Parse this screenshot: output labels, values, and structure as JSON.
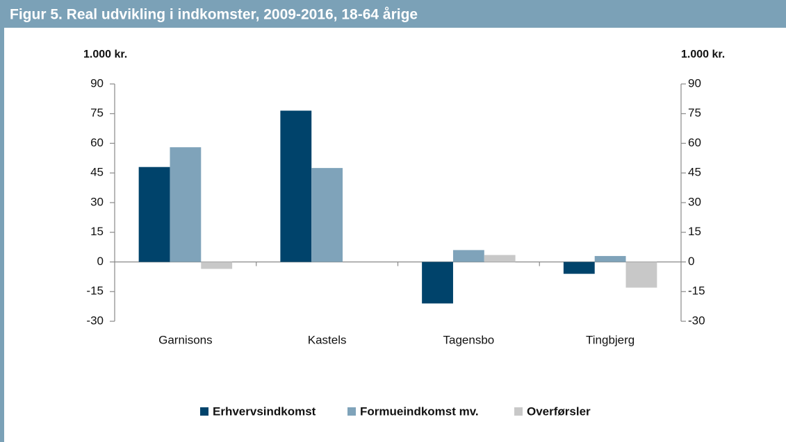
{
  "chart_data": {
    "type": "bar",
    "title": "Figur 5. Real udvikling i indkomster, 2009-2016, 18-64 årige",
    "y_label": "1.000 kr.",
    "y2_label": "1.000 kr.",
    "categories": [
      "Garnisons",
      "Kastels",
      "Tagensbo",
      "Tingbjerg"
    ],
    "series": [
      {
        "name": "Erhvervsindkomst",
        "color": "#00436b",
        "values": [
          48,
          76.5,
          -21,
          -6
        ]
      },
      {
        "name": "Formueindkomst mv.",
        "color": "#7fa3ba",
        "values": [
          58,
          47.5,
          6,
          3
        ]
      },
      {
        "name": "Overførsler",
        "color": "#c8c8c8",
        "values": [
          -3.5,
          0,
          3.5,
          -13
        ]
      }
    ],
    "ylim": [
      -30,
      90
    ],
    "yticks": [
      -30,
      -15,
      0,
      15,
      30,
      45,
      60,
      75,
      90
    ],
    "y2lim": [
      -30,
      90
    ],
    "y2ticks": [
      -30,
      -15,
      0,
      15,
      30,
      45,
      60,
      75,
      90
    ],
    "grid": false,
    "legend": "bottom"
  }
}
